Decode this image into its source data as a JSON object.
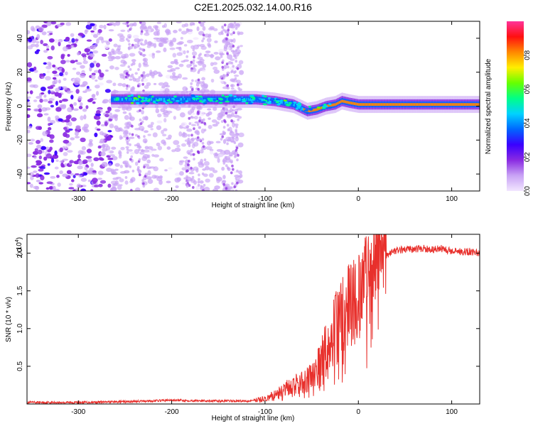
{
  "title": "C2E1.2025.032.14.00.R16",
  "colors": {
    "snr_line": "#e8302c",
    "axis": "#000000",
    "background": "#ffffff"
  },
  "colorbar": {
    "label": "Normalized spectral amplitude",
    "ticks": [
      "0.0",
      "0.2",
      "0.4",
      "0.6",
      "0.8"
    ],
    "range": [
      0,
      1
    ],
    "colormap": [
      "#f2e6ff",
      "#c9a3f5",
      "#8a2be2",
      "#3a00ff",
      "#0066ff",
      "#00d2ff",
      "#00ff88",
      "#66ff00",
      "#ffee00",
      "#ff8800",
      "#ff1010",
      "#ff3399"
    ]
  },
  "chart_data": [
    {
      "type": "heatmap",
      "xlabel": "Height of straight line (km)",
      "ylabel": "Frequency (Hz)",
      "xlim": [
        -355,
        130
      ],
      "ylim": [
        -50,
        50
      ],
      "xticks": [
        -300,
        -200,
        -100,
        0,
        100
      ],
      "yticks": [
        -40,
        -20,
        0,
        20,
        40
      ],
      "ridge": {
        "x": [
          -265,
          -200,
          -140,
          -110,
          -90,
          -70,
          -55,
          -45,
          -35,
          -25,
          -18,
          -10,
          0,
          50,
          100,
          130
        ],
        "y": [
          4,
          4,
          4,
          4,
          3,
          1,
          -3,
          -2,
          0,
          1,
          3,
          2,
          1,
          1,
          1,
          1
        ]
      },
      "noise_region": {
        "x_from": -355,
        "x_to": -125
      }
    },
    {
      "type": "line",
      "xlabel": "Height of straight line (km)",
      "ylabel": "SNR (10 * v/v)",
      "yscale_label": "(x10",
      "yscale_exp": "4",
      "xlim": [
        -355,
        130
      ],
      "ylim": [
        0,
        2.25
      ],
      "xticks": [
        -300,
        -200,
        -100,
        0,
        100
      ],
      "yticks": [
        "0.5",
        "1.0",
        "1.5",
        "2.0"
      ],
      "ytick_values": [
        0.5,
        1.0,
        1.5,
        2.0
      ],
      "series": [
        {
          "x": [
            -355,
            -300,
            -250,
            -200,
            -150,
            -120,
            -100,
            -90,
            -80,
            -70,
            -60,
            -50,
            -40,
            -30,
            -20,
            -10,
            0,
            10,
            20,
            30,
            40,
            50,
            60,
            70,
            80,
            90,
            100,
            110,
            120,
            130
          ],
          "values": [
            0.02,
            0.02,
            0.03,
            0.05,
            0.04,
            0.04,
            0.07,
            0.12,
            0.18,
            0.25,
            0.28,
            0.35,
            0.55,
            0.85,
            1.05,
            1.25,
            1.45,
            1.7,
            1.88,
            1.98,
            2.03,
            2.05,
            2.05,
            2.06,
            2.05,
            2.06,
            2.03,
            2.02,
            2.02,
            2.0
          ]
        }
      ]
    }
  ]
}
